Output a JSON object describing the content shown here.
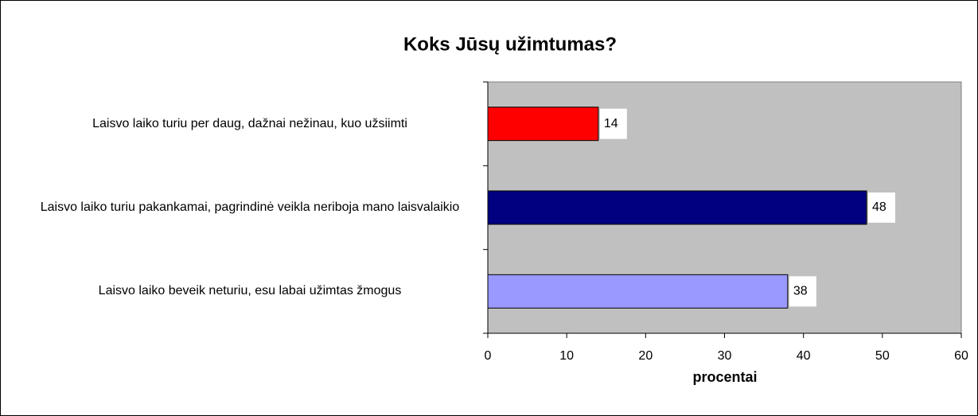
{
  "chart_data": {
    "type": "bar",
    "orientation": "horizontal",
    "title": "Koks Jūsų užimtumas?",
    "categories": [
      "Laisvo laiko turiu per daug, dažnai nežinau, kuo užsiimti",
      "Laisvo laiko turiu pakankamai, pagrindinė veikla neriboja mano laisvalaikio",
      "Laisvo laiko beveik neturiu, esu labai užimtas žmogus"
    ],
    "values": [
      14,
      48,
      38
    ],
    "colors": [
      "#ff0000",
      "#000080",
      "#9999ff"
    ],
    "xlabel": "procentai",
    "xlim": [
      0,
      60
    ],
    "xticks": [
      0,
      10,
      20,
      30,
      40,
      50,
      60
    ],
    "grid": false
  }
}
